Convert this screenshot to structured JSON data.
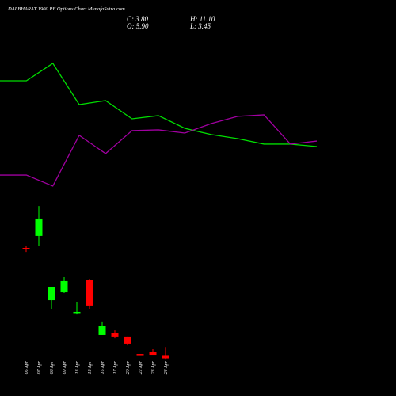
{
  "chart_data": [
    {
      "type": "candlestick",
      "title": "DALBHARAT 1900 PE Options Chart MunafaSutra.com",
      "ohlc_labels": [
        "C: 3.80",
        "H: 11.10",
        "O: 5.90",
        "L: 3.45"
      ],
      "categories": [
        "06 Apr",
        "07 Apr",
        "08 Apr",
        "09 Apr",
        "13 Apr",
        "15 Apr",
        "16 Apr",
        "17 Apr",
        "20 Apr",
        "22 Apr",
        "23 Apr",
        "24 Apr"
      ],
      "open": [
        75,
        82.7,
        41.3,
        46.4,
        33.2,
        54.1,
        18.9,
        19.9,
        17.9,
        6.6,
        7.7,
        5.9
      ],
      "high": [
        76.5,
        102,
        49.5,
        56.1,
        40.3,
        55.1,
        27.6,
        21.9,
        17.9,
        6.6,
        9.7,
        11.1
      ],
      "low": [
        72.4,
        76.5,
        35.7,
        45.9,
        32.1,
        35.7,
        18.9,
        16.8,
        12.2,
        6.1,
        6.1,
        3.45
      ],
      "close": [
        74.5,
        93.9,
        49.5,
        53.6,
        33.7,
        37.8,
        24.5,
        17.9,
        13.3,
        6.1,
        6.1,
        3.8
      ],
      "up_color": "#00ff00",
      "down_color": "#ff0000",
      "ylim": [
        0,
        120
      ]
    },
    {
      "type": "line",
      "categories": [
        null,
        null,
        null,
        null,
        null,
        null,
        null,
        null,
        null,
        null,
        null,
        null,
        null
      ],
      "series": [
        {
          "color": "#00dd00",
          "values": [
            82.5,
            82.5,
            91.7,
            70,
            72.1,
            62.5,
            64.2,
            57.5,
            54.2,
            52.1,
            49.2,
            49.2,
            47.9
          ]
        },
        {
          "color": "#a000a0",
          "values": [
            32.9,
            32.9,
            27.1,
            53.8,
            44.2,
            56.3,
            56.7,
            55,
            60,
            63.8,
            64.6,
            49.2,
            50.8
          ]
        }
      ],
      "ylim": [
        0,
        100
      ]
    }
  ]
}
